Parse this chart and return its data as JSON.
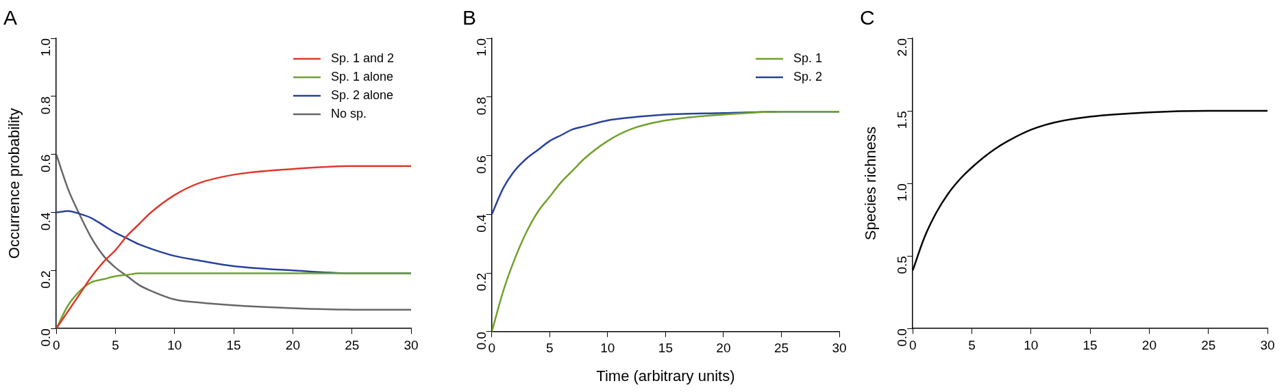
{
  "chart_data": [
    {
      "type": "line",
      "title": "A",
      "ylabel": "Occurrence probability",
      "x": [
        0,
        1,
        2,
        3,
        4,
        5,
        6,
        7,
        8,
        10,
        12,
        15,
        20,
        25,
        30
      ],
      "xlim": [
        0,
        30
      ],
      "xticks": [
        0,
        5,
        10,
        15,
        20,
        25,
        30
      ],
      "ylim": [
        0,
        1
      ],
      "yticks": [
        {
          "value": 0,
          "label": "0.0"
        },
        0.2,
        0.4,
        0.6,
        0.8,
        {
          "value": 1,
          "label": "1.0"
        }
      ],
      "grid": false,
      "legend": "top right",
      "marker": "none",
      "line_style": "solid",
      "series": [
        {
          "name": "Sp. 1 and 2",
          "color": "#e0382a",
          "values": [
            0,
            0.06,
            0.12,
            0.18,
            0.23,
            0.27,
            0.32,
            0.36,
            0.4,
            0.46,
            0.5,
            0.53,
            0.55,
            0.56,
            0.56
          ]
        },
        {
          "name": "Sp. 1 alone",
          "color": "#6fa12a",
          "values": [
            0,
            0.08,
            0.13,
            0.16,
            0.17,
            0.18,
            0.185,
            0.19,
            0.19,
            0.19,
            0.19,
            0.19,
            0.19,
            0.19,
            0.19
          ]
        },
        {
          "name": "Sp. 2 alone",
          "color": "#27419a",
          "values": [
            0.4,
            0.405,
            0.395,
            0.38,
            0.355,
            0.33,
            0.31,
            0.29,
            0.275,
            0.25,
            0.235,
            0.215,
            0.2,
            0.19,
            0.19
          ]
        },
        {
          "name": "No sp.",
          "color": "#666666",
          "values": [
            0.6,
            0.48,
            0.39,
            0.31,
            0.25,
            0.21,
            0.18,
            0.15,
            0.13,
            0.1,
            0.09,
            0.08,
            0.07,
            0.065,
            0.065
          ]
        }
      ]
    },
    {
      "type": "line",
      "title": "B",
      "xlabel": "Time (arbitrary units)",
      "x": [
        0,
        1,
        2,
        3,
        4,
        5,
        6,
        7,
        8,
        10,
        12,
        15,
        20,
        25,
        30
      ],
      "xlim": [
        0,
        30
      ],
      "xticks": [
        0,
        5,
        10,
        15,
        20,
        25,
        30
      ],
      "ylim": [
        0,
        1
      ],
      "yticks": [
        {
          "value": 0,
          "label": "0.0"
        },
        0.2,
        0.4,
        0.6,
        0.8,
        {
          "value": 1,
          "label": "1.0"
        }
      ],
      "grid": false,
      "legend": "top right",
      "marker": "none",
      "line_style": "solid",
      "series": [
        {
          "name": "Sp. 1",
          "color": "#6fa12a",
          "values": [
            0,
            0.14,
            0.25,
            0.34,
            0.41,
            0.46,
            0.51,
            0.55,
            0.59,
            0.65,
            0.69,
            0.72,
            0.74,
            0.75,
            0.75
          ]
        },
        {
          "name": "Sp. 2",
          "color": "#27419a",
          "values": [
            0.4,
            0.49,
            0.55,
            0.59,
            0.62,
            0.65,
            0.67,
            0.69,
            0.7,
            0.72,
            0.73,
            0.74,
            0.745,
            0.75,
            0.75
          ]
        }
      ]
    },
    {
      "type": "line",
      "title": "C",
      "ylabel": "Species richness",
      "x": [
        0,
        1,
        2,
        3,
        4,
        5,
        6,
        7,
        8,
        10,
        12,
        15,
        20,
        25,
        30
      ],
      "xlim": [
        0,
        30
      ],
      "xticks": [
        0,
        5,
        10,
        15,
        20,
        25,
        30
      ],
      "ylim": [
        0,
        2
      ],
      "yticks": [
        {
          "value": 0,
          "label": "0.0"
        },
        0.5,
        {
          "value": 1,
          "label": "1.0"
        },
        1.5,
        {
          "value": 2,
          "label": "2.0"
        }
      ],
      "grid": false,
      "legend": false,
      "marker": "none",
      "line_style": "solid",
      "series": [
        {
          "color": "#000000",
          "values": [
            0.4,
            0.63,
            0.8,
            0.93,
            1.03,
            1.11,
            1.18,
            1.24,
            1.29,
            1.37,
            1.42,
            1.46,
            1.49,
            1.5,
            1.5
          ]
        }
      ]
    }
  ]
}
